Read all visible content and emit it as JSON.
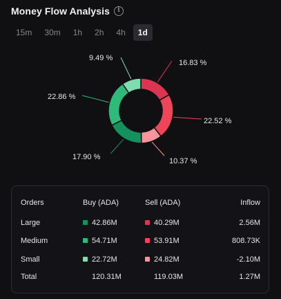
{
  "header": {
    "title": "Money Flow Analysis",
    "info_icon": "info-icon"
  },
  "tabs": [
    {
      "label": "15m",
      "active": false
    },
    {
      "label": "30m",
      "active": false
    },
    {
      "label": "1h",
      "active": false
    },
    {
      "label": "2h",
      "active": false
    },
    {
      "label": "4h",
      "active": false
    },
    {
      "label": "1d",
      "active": true
    }
  ],
  "chart_data": {
    "type": "pie",
    "slices": [
      {
        "label": "16.83 %",
        "value": 16.83,
        "color": "#dc3551"
      },
      {
        "label": "22.52 %",
        "value": 22.52,
        "color": "#ef4559"
      },
      {
        "label": "10.37 %",
        "value": 10.37,
        "color": "#f7959b"
      },
      {
        "label": "17.90 %",
        "value": 17.9,
        "color": "#15915e"
      },
      {
        "label": "22.86 %",
        "value": 22.86,
        "color": "#2fba7a"
      },
      {
        "label": "9.49 %",
        "value": 9.49,
        "color": "#7fdcae"
      }
    ]
  },
  "table": {
    "headers": {
      "orders": "Orders",
      "buy": "Buy (ADA)",
      "sell": "Sell (ADA)",
      "inflow": "Inflow"
    },
    "rows": [
      {
        "label": "Large",
        "buy": "42.86M",
        "buy_color": "#15915e",
        "sell": "40.29M",
        "sell_color": "#dc3551",
        "inflow": "2.56M"
      },
      {
        "label": "Medium",
        "buy": "54.71M",
        "buy_color": "#2fba7a",
        "sell": "53.91M",
        "sell_color": "#ef4559",
        "inflow": "808.73K"
      },
      {
        "label": "Small",
        "buy": "22.72M",
        "buy_color": "#7fdcae",
        "sell": "24.82M",
        "sell_color": "#f7959b",
        "inflow": "-2.10M"
      }
    ],
    "total": {
      "label": "Total",
      "buy": "120.31M",
      "sell": "119.03M",
      "inflow": "1.27M"
    }
  }
}
